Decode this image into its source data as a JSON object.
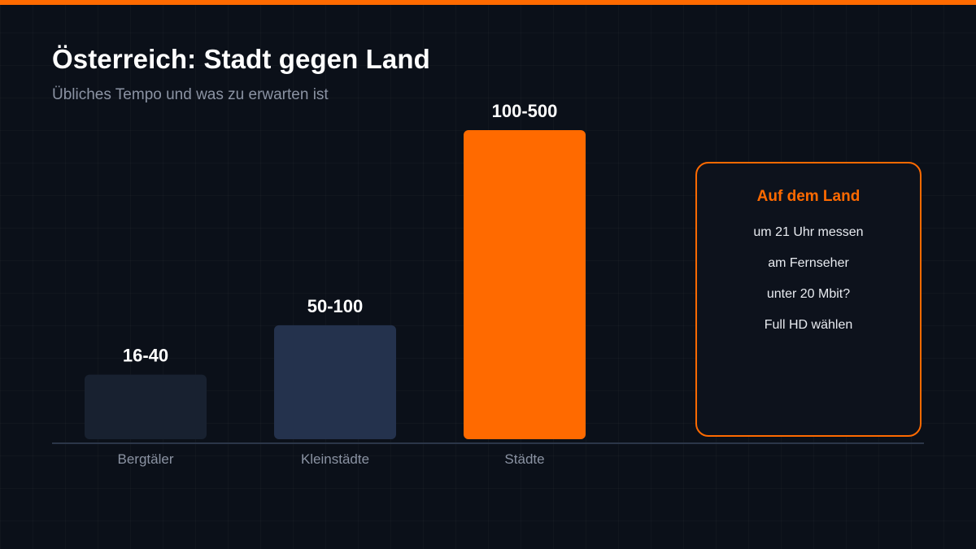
{
  "header": {
    "title": "Österreich: Stadt gegen Land",
    "subtitle": "Übliches Tempo und was zu erwarten ist"
  },
  "colors": {
    "accent": "#ff6a00",
    "background": "#0b1019",
    "axis": "#2b3648",
    "muted_text": "#8b93a3"
  },
  "chart_data": {
    "type": "bar",
    "title": "Österreich: Stadt gegen Land",
    "subtitle": "Übliches Tempo und was zu erwarten ist",
    "categories": [
      "Bergtäler",
      "Kleinstädte",
      "Städte"
    ],
    "value_labels": [
      "16-40",
      "50-100",
      "100-500"
    ],
    "values": [
      40,
      100,
      500
    ],
    "ranges": [
      [
        16,
        40
      ],
      [
        50,
        100
      ],
      [
        100,
        500
      ]
    ],
    "bar_colors": [
      "#182130",
      "#24324d",
      "#ff6a00"
    ],
    "ylim": [
      0,
      500
    ],
    "grid": false,
    "legend": "none"
  },
  "tip": {
    "title": "Auf dem Land",
    "lines": [
      "um 21 Uhr messen",
      "am Fernseher",
      "unter 20 Mbit?",
      "Full HD wählen"
    ]
  }
}
